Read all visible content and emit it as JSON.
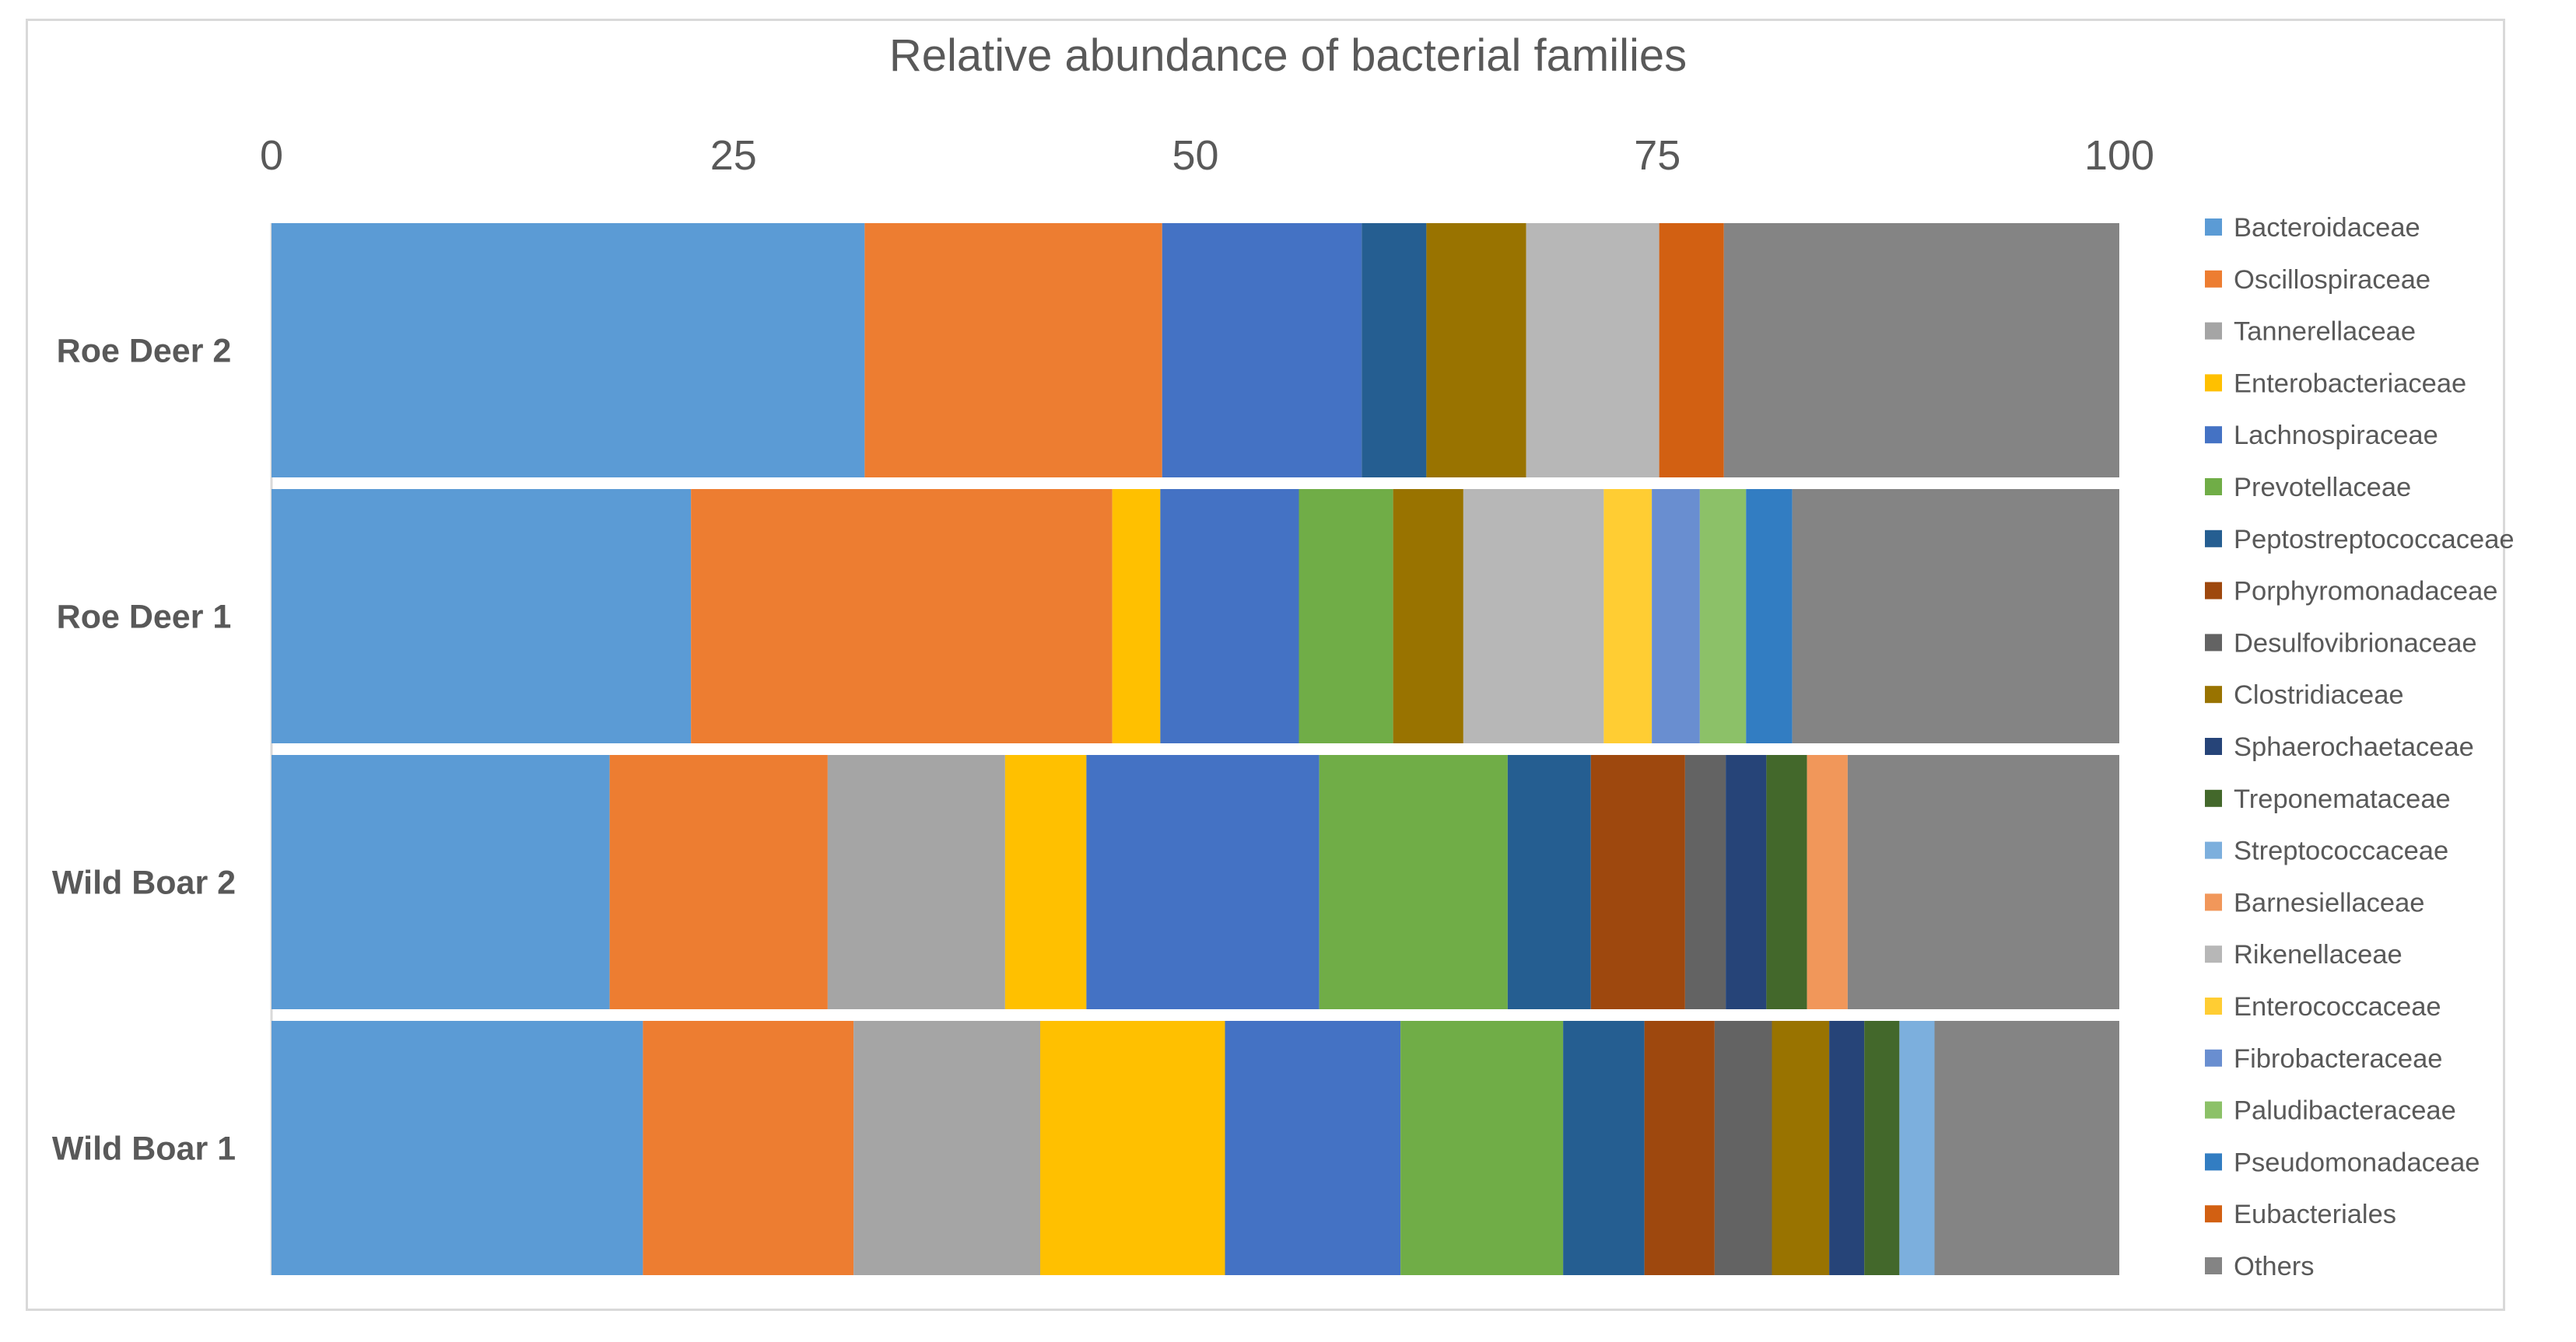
{
  "chart_data": {
    "type": "bar",
    "orientation": "horizontal",
    "stacked": true,
    "title": "Relative abundance of bacterial families",
    "xlabel": "",
    "ylabel": "",
    "xlim": [
      0,
      100
    ],
    "x_ticks": [
      0,
      25,
      50,
      75,
      100
    ],
    "grid": false,
    "legend_position": "right",
    "categories": [
      "Roe Deer 2",
      "Roe Deer 1",
      "Wild Boar 2",
      "Wild Boar 1"
    ],
    "series": [
      {
        "name": "Bacteroidaceae",
        "color": "#5B9BD5",
        "values": [
          32.1,
          22.7,
          18.3,
          20.1
        ]
      },
      {
        "name": "Oscillospiraceae",
        "color": "#ED7D31",
        "values": [
          16.1,
          22.8,
          11.8,
          11.4
        ]
      },
      {
        "name": "Tannerellaceae",
        "color": "#A5A5A5",
        "values": [
          0,
          0,
          9.6,
          10.1
        ]
      },
      {
        "name": "Enterobacteriaceae",
        "color": "#FFC000",
        "values": [
          0,
          2.6,
          4.4,
          10.0
        ]
      },
      {
        "name": "Lachnospiraceae",
        "color": "#4472C4",
        "values": [
          10.8,
          7.5,
          12.6,
          9.5
        ]
      },
      {
        "name": "Prevotellaceae",
        "color": "#70AD47",
        "values": [
          0,
          5.1,
          10.2,
          8.8
        ]
      },
      {
        "name": "Peptostreptococcaceae",
        "color": "#255E91",
        "values": [
          3.5,
          0,
          4.5,
          4.4
        ]
      },
      {
        "name": "Porphyromonadaceae",
        "color": "#9E480E",
        "values": [
          0,
          0,
          5.1,
          3.8
        ]
      },
      {
        "name": "Desulfovibrionaceae",
        "color": "#636363",
        "values": [
          0,
          0,
          2.2,
          3.1
        ]
      },
      {
        "name": "Clostridiaceae",
        "color": "#997300",
        "values": [
          5.4,
          3.8,
          0,
          3.1
        ]
      },
      {
        "name": "Sphaerochaetaceae",
        "color": "#264478",
        "values": [
          0,
          0,
          2.2,
          1.9
        ]
      },
      {
        "name": "Treponemataceae",
        "color": "#43682B",
        "values": [
          0,
          0,
          2.2,
          1.9
        ]
      },
      {
        "name": "Streptococcaceae",
        "color": "#7CAFDD",
        "values": [
          0,
          0,
          0,
          1.9
        ]
      },
      {
        "name": "Barnesiellaceae",
        "color": "#F1975A",
        "values": [
          0,
          0,
          2.2,
          0
        ]
      },
      {
        "name": "Rikenellaceae",
        "color": "#B7B7B7",
        "values": [
          7.2,
          7.6,
          0,
          0
        ]
      },
      {
        "name": "Enterococcaceae",
        "color": "#FFCD33",
        "values": [
          0,
          2.6,
          0,
          0
        ]
      },
      {
        "name": "Fibrobacteraceae",
        "color": "#698ED0",
        "values": [
          0,
          2.6,
          0,
          0
        ]
      },
      {
        "name": "Paludibacteraceae",
        "color": "#8CC168",
        "values": [
          0,
          2.5,
          0,
          0
        ]
      },
      {
        "name": "Pseudomonadaceae",
        "color": "#327DC2",
        "values": [
          0,
          2.5,
          0,
          0
        ]
      },
      {
        "name": "Eubacteriales",
        "color": "#D26012",
        "values": [
          3.5,
          0,
          0,
          0
        ]
      },
      {
        "name": "Others",
        "color": "#848484",
        "values": [
          21.4,
          17.7,
          14.7,
          10.0
        ]
      }
    ]
  }
}
